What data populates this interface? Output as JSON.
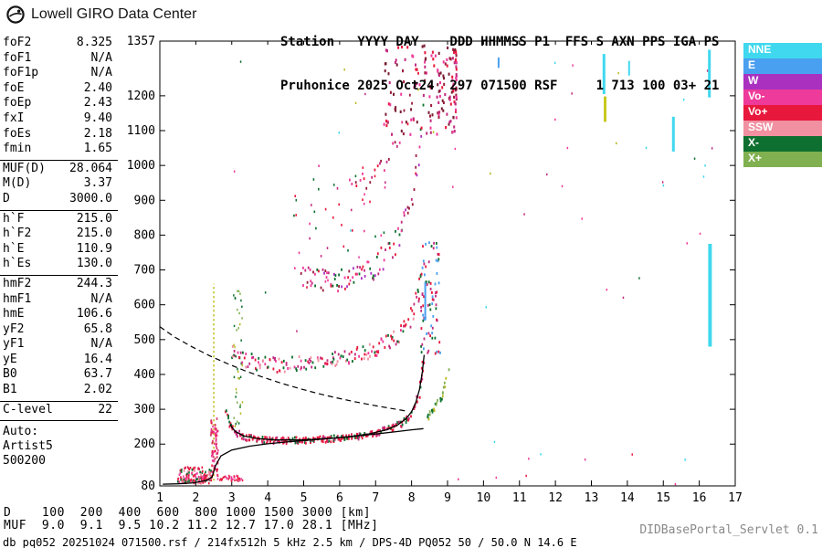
{
  "app": {
    "logo_text": "Lowell GIRO Data Center",
    "servlet_label": "DIDBasePortal_Servlet 0.1",
    "status_line": "db pq052 20251024 071500.rsf / 214fx512h 5 kHz 2.5 km / DPS-4D PQ052 50 / 50.0 N 14.6 E"
  },
  "header": {
    "line1": "Station   YYYY DAY    DDD HHMMSS P1  FFS S AXN PPS IGA PS",
    "line2": "Pruhonice 2025 Oct24  297 071500 RSF     1 713 100 03+ 21"
  },
  "params": {
    "groups": [
      {
        "rows": [
          [
            "foF2",
            "8.325"
          ],
          [
            "foF1",
            "N/A"
          ],
          [
            "foF1p",
            "N/A"
          ],
          [
            "foE",
            "2.40"
          ],
          [
            "foEp",
            "2.43"
          ],
          [
            "fxI",
            "9.40"
          ],
          [
            "foEs",
            "2.18"
          ],
          [
            "fmin",
            "1.65"
          ]
        ]
      },
      {
        "rows": [
          [
            "MUF(D)",
            "28.064"
          ],
          [
            "M(D)",
            "3.37"
          ],
          [
            "D",
            "3000.0"
          ]
        ]
      },
      {
        "rows": [
          [
            "h`F",
            "215.0"
          ],
          [
            "h`F2",
            "215.0"
          ],
          [
            "h`E",
            "110.9"
          ],
          [
            "h`Es",
            "130.0"
          ]
        ]
      },
      {
        "rows": [
          [
            "hmF2",
            "244.3"
          ],
          [
            "hmF1",
            "N/A"
          ],
          [
            "hmE",
            "106.6"
          ],
          [
            "yF2",
            "65.8"
          ],
          [
            "yF1",
            "N/A"
          ],
          [
            "yE",
            "16.4"
          ],
          [
            "B0",
            "63.7"
          ],
          [
            "B1",
            "2.02"
          ]
        ]
      },
      {
        "rows": [
          [
            "C-level",
            "22"
          ]
        ]
      }
    ],
    "auto": [
      "Auto:",
      "Artist5",
      "500200"
    ]
  },
  "footer": {
    "d_row": "D    100  200  400  600  800 1000 1500 3000 [km]",
    "muf_row": "MUF  9.0  9.1  9.5 10.2 11.2 12.7 17.0 28.1 [MHz]"
  },
  "chart_data": {
    "type": "scatter",
    "x_range": [
      1,
      17
    ],
    "y_range": [
      80,
      1357
    ],
    "x_ticks": [
      1,
      2,
      3,
      4,
      5,
      6,
      7,
      8,
      9,
      10,
      11,
      12,
      13,
      14,
      15,
      16,
      17
    ],
    "y_ticks": [
      1357,
      1200,
      1100,
      1000,
      900,
      800,
      700,
      600,
      500,
      400,
      300,
      200,
      80
    ],
    "x_units": "[MHz]",
    "y_units": "[km]",
    "legend": [
      {
        "label": "NNE",
        "color": "#40d8ee"
      },
      {
        "label": "E",
        "color": "#4aa0f0"
      },
      {
        "label": "W",
        "color": "#aa30c0"
      },
      {
        "label": "Vo-",
        "color": "#ee3a9a"
      },
      {
        "label": "Vo+",
        "color": "#e8173c"
      },
      {
        "label": "SSW",
        "color": "#f090a0"
      },
      {
        "label": "X-",
        "color": "#0e7030"
      },
      {
        "label": "X+",
        "color": "#80b050"
      }
    ],
    "traces": [
      {
        "name": "F2-O-trace",
        "step": 0.03,
        "jitter": 9,
        "streak": 2,
        "size": 1.8,
        "colors": [
          "#e8173c",
          "#e8173c",
          "#d8285c",
          "#0e7030",
          "#c22a7f"
        ],
        "anchors": [
          [
            2.85,
            290
          ],
          [
            3.0,
            250
          ],
          [
            3.15,
            233
          ],
          [
            3.4,
            221
          ],
          [
            3.8,
            214
          ],
          [
            4.3,
            211
          ],
          [
            5.0,
            212
          ],
          [
            5.6,
            215
          ],
          [
            6.1,
            219
          ],
          [
            6.6,
            225
          ],
          [
            7.0,
            233
          ],
          [
            7.4,
            245
          ],
          [
            7.7,
            259
          ],
          [
            7.95,
            280
          ],
          [
            8.1,
            307
          ],
          [
            8.2,
            342
          ],
          [
            8.28,
            392
          ],
          [
            8.33,
            442
          ],
          [
            8.36,
            458
          ]
        ]
      },
      {
        "name": "F2-X-rise",
        "step": 0.03,
        "jitter": 10,
        "streak": 2,
        "size": 1.8,
        "colors": [
          "#80b050",
          "#b8b820",
          "#0e7030"
        ],
        "anchors": [
          [
            8.45,
            282
          ],
          [
            8.6,
            297
          ],
          [
            8.75,
            318
          ],
          [
            8.88,
            348
          ],
          [
            8.98,
            390
          ],
          [
            9.05,
            428
          ]
        ]
      },
      {
        "name": "F2-2nd-hop",
        "step": 0.045,
        "jitter": 22,
        "streak": 2,
        "size": 1.8,
        "colors": [
          "#e8173c",
          "#ee3a9a",
          "#0e7030",
          "#c22a7f",
          "#f090a0"
        ],
        "anchors": [
          [
            3.0,
            468
          ],
          [
            3.2,
            452
          ],
          [
            3.5,
            440
          ],
          [
            3.9,
            432
          ],
          [
            4.4,
            429
          ],
          [
            5.0,
            431
          ],
          [
            5.5,
            437
          ],
          [
            6.0,
            446
          ],
          [
            6.5,
            458
          ],
          [
            7.0,
            474
          ],
          [
            7.35,
            493
          ],
          [
            7.65,
            516
          ],
          [
            7.9,
            546
          ],
          [
            8.05,
            582
          ],
          [
            8.18,
            632
          ],
          [
            8.28,
            698
          ],
          [
            8.34,
            748
          ]
        ]
      },
      {
        "name": "F2-3rd-hop",
        "step": 0.055,
        "jitter": 34,
        "streak": 2,
        "size": 1.8,
        "colors": [
          "#c22a7f",
          "#ee3a9a",
          "#0e7030",
          "#e8173c",
          "#9b1b3c",
          "#aa30c0"
        ],
        "anchors": [
          [
            4.95,
            690
          ],
          [
            5.4,
            673
          ],
          [
            5.9,
            669
          ],
          [
            6.4,
            681
          ],
          [
            6.9,
            706
          ],
          [
            7.3,
            742
          ],
          [
            7.6,
            788
          ],
          [
            7.85,
            848
          ],
          [
            8.05,
            928
          ],
          [
            8.2,
            1035
          ],
          [
            8.3,
            1155
          ],
          [
            8.35,
            1255
          ]
        ]
      },
      {
        "name": "F2-4th-hop",
        "step": 0.07,
        "jitter": 40,
        "streak": 1,
        "size": 1.8,
        "colors": [
          "#c22a7f",
          "#ee3a9a",
          "#9b1b3c",
          "#e8173c"
        ],
        "anchors": [
          [
            6.3,
            952
          ],
          [
            6.7,
            962
          ],
          [
            7.1,
            992
          ],
          [
            7.45,
            1042
          ],
          [
            7.75,
            1112
          ],
          [
            8.0,
            1192
          ],
          [
            8.2,
            1282
          ],
          [
            8.3,
            1335
          ]
        ]
      },
      {
        "name": "E-trace",
        "step": 0.03,
        "jitter": 7,
        "streak": 2,
        "size": 1.6,
        "colors": [
          "#e8173c",
          "#ee3a9a",
          "#0e7030"
        ],
        "anchors": [
          [
            1.6,
            97
          ],
          [
            1.9,
            99
          ],
          [
            2.15,
            102
          ],
          [
            2.35,
            107
          ],
          [
            2.45,
            117
          ]
        ]
      },
      {
        "name": "Es-trace",
        "step": 0.04,
        "jitter": 4,
        "streak": 1,
        "size": 1.6,
        "colors": [
          "#e8173c",
          "#d8285c"
        ],
        "anchors": [
          [
            1.68,
            131
          ],
          [
            2.0,
            131
          ],
          [
            2.2,
            133
          ]
        ]
      }
    ],
    "clusters": [
      {
        "name": "multi-hop-funnel",
        "f": [
          7.2,
          9.25
        ],
        "h": [
          1090,
          1345
        ],
        "n": 170,
        "skew": "right",
        "size": 2,
        "colors": [
          "#9b1b3c",
          "#c22a7f",
          "#7a1f33",
          "#e8173c",
          "#ee3a9a"
        ]
      },
      {
        "name": "upper-mid-scatter",
        "f": [
          4.7,
          7.3
        ],
        "h": [
          650,
          1000
        ],
        "n": 45,
        "size": 1.6,
        "colors": [
          "#ee3a9a",
          "#c22a7f",
          "#0e7030",
          "#e8173c"
        ]
      },
      {
        "name": "spread-f",
        "f": [
          8.2,
          8.8
        ],
        "h": [
          460,
          780
        ],
        "n": 80,
        "size": 1.8,
        "colors": [
          "#e8173c",
          "#0e7030",
          "#c22a7f",
          "#4aa0f0"
        ]
      },
      {
        "name": "wide-noise",
        "f": [
          2.8,
          16.6
        ],
        "h": [
          470,
          1340
        ],
        "n": 42,
        "size": 1.5,
        "colors": [
          "#40d8ee",
          "#ee3a9a",
          "#0e7030",
          "#c22a7f",
          "#b8b820"
        ]
      },
      {
        "name": "e-region",
        "f": [
          1.5,
          2.45
        ],
        "h": [
          88,
          128
        ],
        "n": 100,
        "size": 1.6,
        "colors": [
          "#e8173c",
          "#ee3a9a",
          "#0e7030",
          "#f090a0"
        ]
      },
      {
        "name": "e-cusp-spread",
        "f": [
          2.42,
          2.62
        ],
        "h": [
          108,
          278
        ],
        "n": 70,
        "size": 1.6,
        "colors": [
          "#e8173c",
          "#d8285c",
          "#ee3a9a"
        ]
      },
      {
        "name": "f-col-scatter",
        "f": [
          3.05,
          3.3
        ],
        "h": [
          250,
          645
        ],
        "n": 40,
        "size": 1.5,
        "colors": [
          "#80b050",
          "#b8b820",
          "#0e7030"
        ]
      },
      {
        "name": "e-tail-scatter",
        "f": [
          2.6,
          3.3
        ],
        "h": [
          95,
          112
        ],
        "n": 35,
        "size": 1.5,
        "colors": [
          "#e8173c",
          "#ee3a9a"
        ]
      },
      {
        "name": "bottom-noise",
        "f": [
          8.8,
          16.3
        ],
        "h": [
          85,
          210
        ],
        "n": 10,
        "size": 1.5,
        "colors": [
          "#e8173c",
          "#ee3a9a",
          "#40d8ee"
        ]
      }
    ],
    "lines": [
      {
        "name": "artist-h-trace",
        "width": 1.3,
        "dash": null,
        "points": [
          [
            2.95,
            256
          ],
          [
            3.1,
            236
          ],
          [
            3.35,
            223
          ],
          [
            3.7,
            216
          ],
          [
            4.2,
            212
          ],
          [
            5.0,
            212
          ],
          [
            5.7,
            216
          ],
          [
            6.3,
            221
          ],
          [
            6.8,
            229
          ],
          [
            7.3,
            241
          ],
          [
            7.6,
            254
          ],
          [
            7.85,
            273
          ],
          [
            8.0,
            293
          ],
          [
            8.12,
            320
          ],
          [
            8.22,
            357
          ],
          [
            8.3,
            407
          ],
          [
            8.35,
            456
          ]
        ]
      },
      {
        "name": "true-height-profile",
        "width": 1.3,
        "dash": null,
        "points": [
          [
            1.08,
            85
          ],
          [
            1.5,
            86
          ],
          [
            1.95,
            89
          ],
          [
            2.3,
            96
          ],
          [
            2.45,
            105
          ],
          [
            2.55,
            138
          ],
          [
            2.7,
            166
          ],
          [
            3.0,
            183
          ],
          [
            3.5,
            194
          ],
          [
            4.0,
            201
          ],
          [
            4.6,
            207
          ],
          [
            5.2,
            212
          ],
          [
            5.8,
            217
          ],
          [
            6.4,
            223
          ],
          [
            7.0,
            229
          ],
          [
            7.6,
            236
          ],
          [
            8.0,
            241
          ],
          [
            8.33,
            244.3
          ]
        ]
      },
      {
        "name": "muf-transmission-curve",
        "width": 1.2,
        "dash": "6,4",
        "points": [
          [
            1.0,
            537
          ],
          [
            1.4,
            508
          ],
          [
            1.9,
            479
          ],
          [
            2.4,
            453
          ],
          [
            2.9,
            430
          ],
          [
            3.4,
            409
          ],
          [
            3.9,
            391
          ],
          [
            4.4,
            374
          ],
          [
            4.9,
            359
          ],
          [
            5.4,
            345
          ],
          [
            5.9,
            333
          ],
          [
            6.4,
            322
          ],
          [
            6.9,
            312
          ],
          [
            7.4,
            303
          ],
          [
            7.85,
            295
          ]
        ]
      }
    ],
    "vlines": [
      {
        "name": "foE-marker",
        "f": 2.5,
        "h": [
          95,
          660
        ],
        "color": "#b8b800",
        "dash": "2,3",
        "width": 1.5
      }
    ],
    "bars": [
      {
        "f": 13.35,
        "h": [
          1205,
          1320
        ],
        "color": "#40d8ee",
        "w": 3
      },
      {
        "f": 13.38,
        "h": [
          1125,
          1198
        ],
        "color": "#c8c820",
        "w": 3
      },
      {
        "f": 15.28,
        "h": [
          1040,
          1140
        ],
        "color": "#40d8ee",
        "w": 3
      },
      {
        "f": 16.28,
        "h": [
          1195,
          1332
        ],
        "color": "#40d8ee",
        "w": 3
      },
      {
        "f": 16.3,
        "h": [
          480,
          775
        ],
        "color": "#40d8ee",
        "w": 4
      },
      {
        "f": 14.05,
        "h": [
          1258,
          1300
        ],
        "color": "#40d8ee",
        "w": 2
      },
      {
        "f": 8.38,
        "h": [
          555,
          665
        ],
        "color": "#4aa0f0",
        "w": 2
      },
      {
        "f": 10.42,
        "h": [
          1280,
          1310
        ],
        "color": "#4aa0f0",
        "w": 2
      }
    ]
  }
}
